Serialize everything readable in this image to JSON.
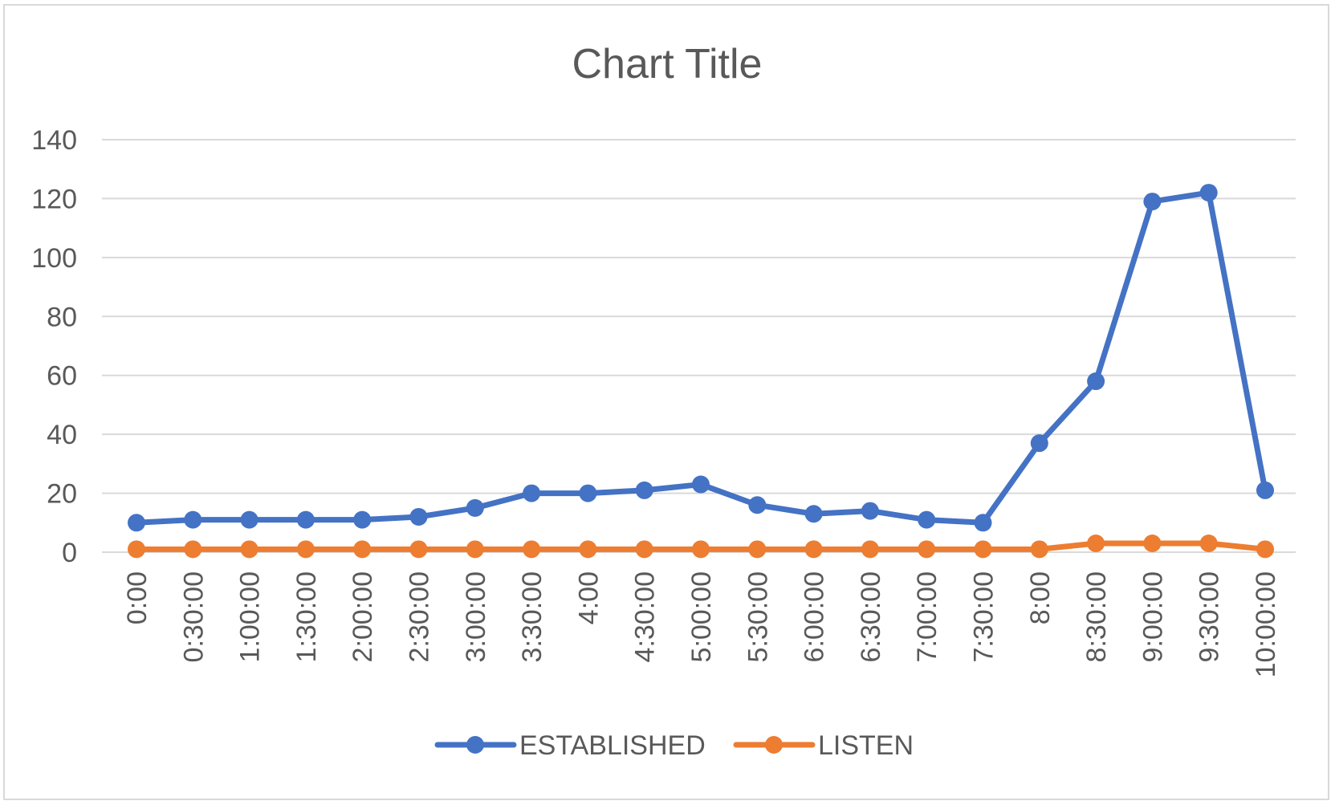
{
  "chart_data": {
    "type": "line",
    "title": "Chart Title",
    "xlabel": "",
    "ylabel": "",
    "categories": [
      "0:00",
      "0:30:00",
      "1:00:00",
      "1:30:00",
      "2:00:00",
      "2:30:00",
      "3:00:00",
      "3:30:00",
      "4:00",
      "4:30:00",
      "5:00:00",
      "5:30:00",
      "6:00:00",
      "6:30:00",
      "7:00:00",
      "7:30:00",
      "8:00",
      "8:30:00",
      "9:00:00",
      "9:30:00",
      "10:00:00"
    ],
    "ylim": [
      0,
      140
    ],
    "yticks": [
      0,
      20,
      40,
      60,
      80,
      100,
      120,
      140
    ],
    "grid": true,
    "legend_position": "bottom",
    "series": [
      {
        "name": "ESTABLISHED",
        "color": "#4472c4",
        "values": [
          10,
          11,
          11,
          11,
          11,
          12,
          15,
          20,
          20,
          21,
          23,
          16,
          13,
          14,
          11,
          10,
          37,
          58,
          119,
          122,
          21
        ]
      },
      {
        "name": "LISTEN",
        "color": "#ed7d31",
        "values": [
          1,
          1,
          1,
          1,
          1,
          1,
          1,
          1,
          1,
          1,
          1,
          1,
          1,
          1,
          1,
          1,
          1,
          3,
          3,
          3,
          1
        ]
      }
    ]
  }
}
